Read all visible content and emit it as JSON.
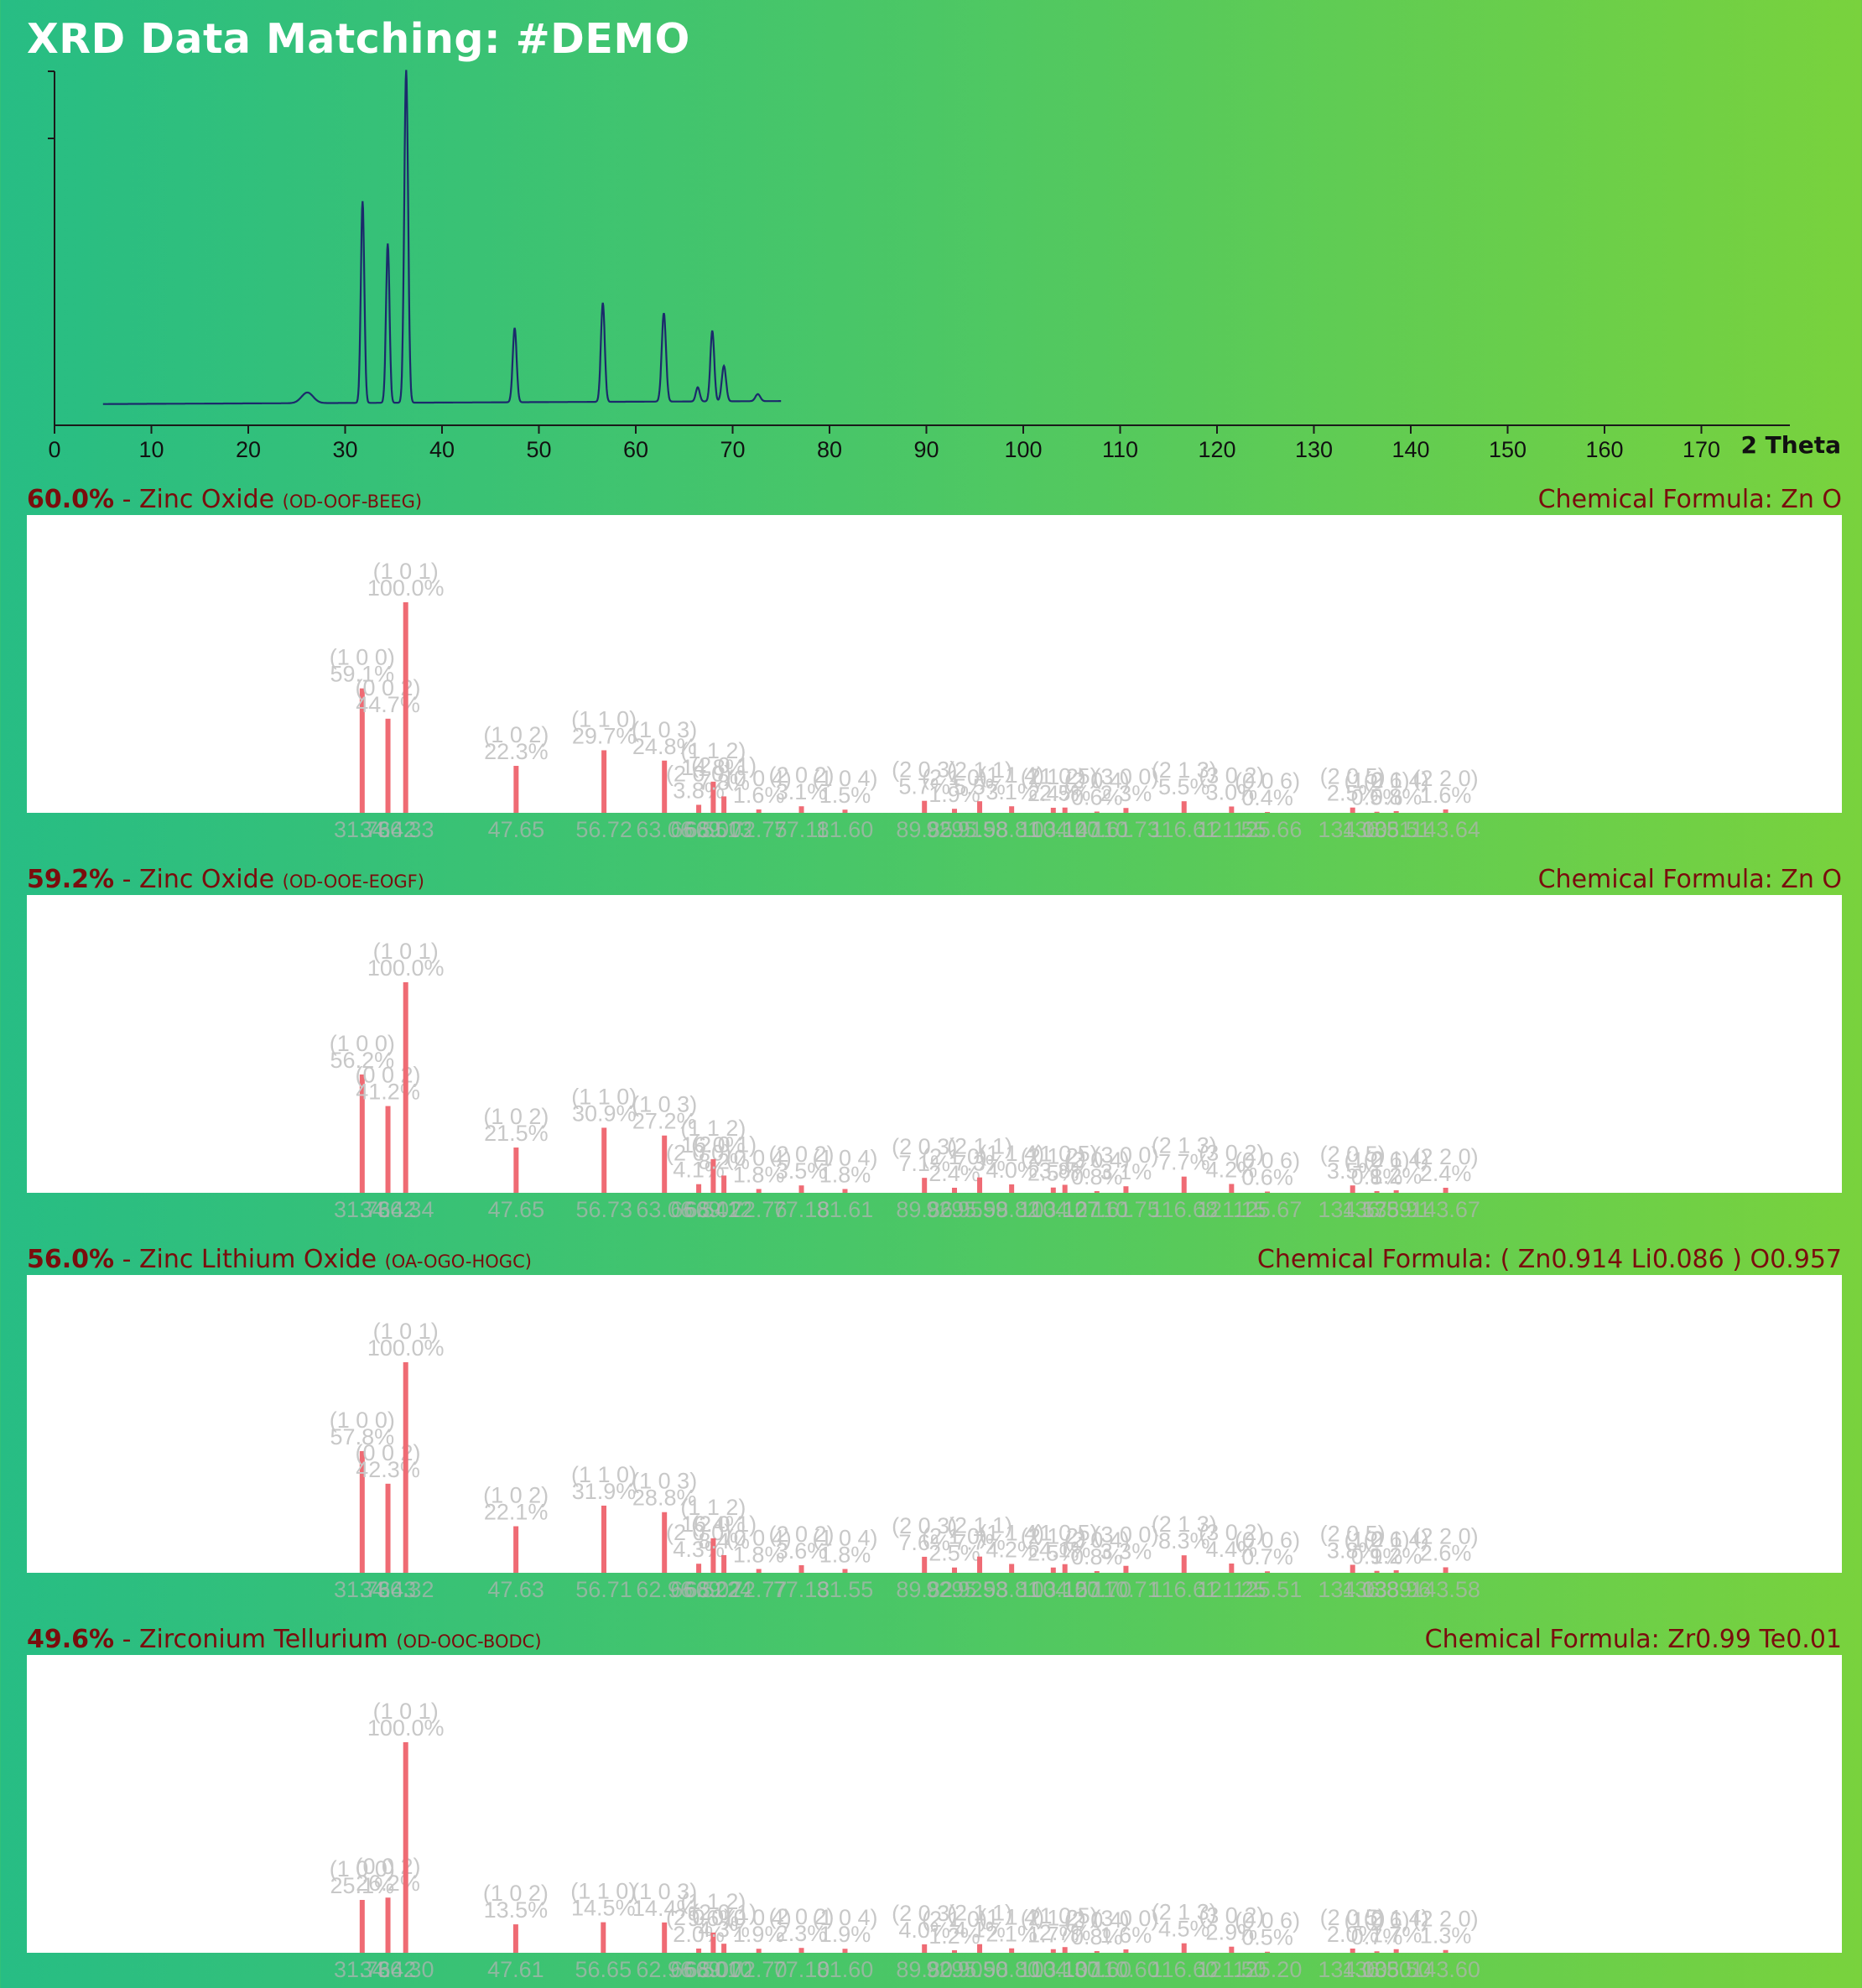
{
  "page": {
    "title": "XRD Data Matching: #DEMO"
  },
  "chart_data": {
    "type": "line",
    "x_axis_label": "2 Theta",
    "xlim": [
      0,
      180
    ],
    "x_ticks": [
      0,
      10,
      20,
      30,
      40,
      50,
      60,
      70,
      80,
      90,
      100,
      110,
      120,
      130,
      140,
      150,
      160,
      170
    ],
    "ylim": [
      0,
      100
    ],
    "line_color": "#1b2a6b",
    "pattern": {
      "x_range": [
        5,
        75
      ],
      "baseline": 6,
      "peaks": [
        {
          "x": 26.1,
          "h": 3,
          "w": 0.6
        },
        {
          "x": 31.8,
          "h": 57,
          "w": 0.18
        },
        {
          "x": 34.4,
          "h": 45,
          "w": 0.18
        },
        {
          "x": 36.3,
          "h": 94,
          "w": 0.2
        },
        {
          "x": 47.5,
          "h": 21,
          "w": 0.2
        },
        {
          "x": 56.6,
          "h": 28,
          "w": 0.2
        },
        {
          "x": 62.9,
          "h": 25,
          "w": 0.22
        },
        {
          "x": 66.4,
          "h": 4,
          "w": 0.2
        },
        {
          "x": 67.9,
          "h": 20,
          "w": 0.2
        },
        {
          "x": 69.1,
          "h": 10,
          "w": 0.22
        },
        {
          "x": 72.6,
          "h": 2,
          "w": 0.25
        },
        {
          "x": 77.0,
          "h": 1,
          "w": 0.3
        }
      ]
    }
  },
  "matches": [
    {
      "percent": "60.0%",
      "name": " - Zinc Oxide ",
      "code": "(OD-OOF-BEEG)",
      "formula": "Chemical Formula: Zn O",
      "peaks": [
        {
          "x": 31.76,
          "xl": "31.76",
          "i": 59.1,
          "hkl": "(1 0 0)",
          "pl": "59.1%"
        },
        {
          "x": 34.42,
          "xl": "34.42",
          "i": 44.7,
          "hkl": "(0 0 2)",
          "pl": "44.7%"
        },
        {
          "x": 36.25,
          "xl": "36.33",
          "i": 100.0,
          "hkl": "(1 0 1)",
          "pl": "100.0%"
        },
        {
          "x": 47.65,
          "xl": "47.65",
          "i": 22.3,
          "hkl": "(1 0 2)",
          "pl": "22.3%"
        },
        {
          "x": 56.72,
          "xl": "56.72",
          "i": 29.7,
          "hkl": "(1 1 0)",
          "pl": "29.7%"
        },
        {
          "x": 62.96,
          "xl": "63.06",
          "i": 24.8,
          "hkl": "(1 0 3)",
          "pl": "24.8%"
        },
        {
          "x": 66.5,
          "xl": "66.55",
          "i": 3.8,
          "hkl": "(2 0 0)",
          "pl": "3.8%"
        },
        {
          "x": 68.0,
          "xl": "68.00",
          "i": 14.8,
          "hkl": "(1 1 2)",
          "pl": "14.8%"
        },
        {
          "x": 69.1,
          "xl": "69.13",
          "i": 7.8,
          "hkl": "(2 0 1)",
          "pl": "7.8%"
        },
        {
          "x": 72.7,
          "xl": "72.75",
          "i": 1.6,
          "hkl": "(0 0 4)",
          "pl": "1.6%"
        },
        {
          "x": 77.1,
          "xl": "77.11",
          "i": 3.1,
          "hkl": "(2 0 2)",
          "pl": "3.1%"
        },
        {
          "x": 81.6,
          "xl": "81.60",
          "i": 1.5,
          "hkl": "(1 0 4)",
          "pl": "1.5%"
        },
        {
          "x": 89.8,
          "xl": "89.85",
          "i": 5.7,
          "hkl": "(2 0 3)",
          "pl": "5.7%"
        },
        {
          "x": 92.9,
          "xl": "92.91",
          "i": 1.9,
          "hkl": "(2 1 0)",
          "pl": "1.9%"
        },
        {
          "x": 95.5,
          "xl": "95.58",
          "i": 5.5,
          "hkl": "(2 1 1)",
          "pl": "5.5%"
        },
        {
          "x": 98.8,
          "xl": "98.81",
          "i": 3.1,
          "hkl": "(1 1 4)",
          "pl": "3.1%"
        },
        {
          "x": 103.1,
          "xl": "103.14",
          "i": 2.4,
          "hkl": "(2 1 2)",
          "pl": "2.4%"
        },
        {
          "x": 104.3,
          "xl": "104.20",
          "i": 2.5,
          "hkl": "(1 0 5)",
          "pl": "2.5%"
        },
        {
          "x": 107.6,
          "xl": "107.61",
          "i": 0.6,
          "hkl": "(2 0 4)",
          "pl": "0.6%"
        },
        {
          "x": 110.6,
          "xl": "110.73",
          "i": 2.3,
          "hkl": "(3 0 0)",
          "pl": "2.3%"
        },
        {
          "x": 116.6,
          "xl": "116.61",
          "i": 5.5,
          "hkl": "(2 1 3)",
          "pl": "5.5%"
        },
        {
          "x": 121.5,
          "xl": "121.55",
          "i": 3.0,
          "hkl": "(3 0 2)",
          "pl": "3.0%"
        },
        {
          "x": 125.2,
          "xl": "125.66",
          "i": 0.4,
          "hkl": "(0 0 6)",
          "pl": "0.4%"
        },
        {
          "x": 134.0,
          "xl": "134.00",
          "i": 2.5,
          "hkl": "(2 0 5)",
          "pl": "2.5%"
        },
        {
          "x": 136.5,
          "xl": "136.51",
          "i": 0.5,
          "hkl": "(1 0 6)",
          "pl": "0.5%"
        },
        {
          "x": 138.5,
          "xl": "138.51",
          "i": 0.8,
          "hkl": "(2 1 4)",
          "pl": "0.8%"
        },
        {
          "x": 143.6,
          "xl": "143.64",
          "i": 1.6,
          "hkl": "(2 2 0)",
          "pl": "1.6%"
        }
      ]
    },
    {
      "percent": "59.2%",
      "name": " - Zinc Oxide ",
      "code": "(OD-OOE-EOGF)",
      "formula": "Chemical Formula: Zn O",
      "peaks": [
        {
          "x": 31.76,
          "xl": "31.76",
          "i": 56.2,
          "hkl": "(1 0 0)",
          "pl": "56.2%"
        },
        {
          "x": 34.42,
          "xl": "34.42",
          "i": 41.2,
          "hkl": "(0 0 2)",
          "pl": "41.2%"
        },
        {
          "x": 36.25,
          "xl": "36.34",
          "i": 100.0,
          "hkl": "(1 0 1)",
          "pl": "100.0%"
        },
        {
          "x": 47.65,
          "xl": "47.65",
          "i": 21.5,
          "hkl": "(1 0 2)",
          "pl": "21.5%"
        },
        {
          "x": 56.73,
          "xl": "56.73",
          "i": 30.9,
          "hkl": "(1 1 0)",
          "pl": "30.9%"
        },
        {
          "x": 62.96,
          "xl": "63.06",
          "i": 27.2,
          "hkl": "(1 0 3)",
          "pl": "27.2%"
        },
        {
          "x": 66.5,
          "xl": "66.54",
          "i": 4.1,
          "hkl": "(2 0 0)",
          "pl": "4.1%"
        },
        {
          "x": 68.0,
          "xl": "68.02",
          "i": 16.0,
          "hkl": "(1 1 2)",
          "pl": "16.0%"
        },
        {
          "x": 69.1,
          "xl": "69.12",
          "i": 8.2,
          "hkl": "(2 0 1)",
          "pl": "8.2%"
        },
        {
          "x": 72.7,
          "xl": "72.76",
          "i": 1.8,
          "hkl": "(0 0 4)",
          "pl": "1.8%"
        },
        {
          "x": 77.1,
          "xl": "77.18",
          "i": 3.5,
          "hkl": "(2 0 2)",
          "pl": "3.5%"
        },
        {
          "x": 81.6,
          "xl": "81.61",
          "i": 1.8,
          "hkl": "(1 0 4)",
          "pl": "1.8%"
        },
        {
          "x": 89.8,
          "xl": "89.86",
          "i": 7.1,
          "hkl": "(2 0 3)",
          "pl": "7.1%"
        },
        {
          "x": 92.9,
          "xl": "92.95",
          "i": 2.4,
          "hkl": "(2 1 0)",
          "pl": "2.4%"
        },
        {
          "x": 95.5,
          "xl": "95.59",
          "i": 7.3,
          "hkl": "(2 1 1)",
          "pl": "7.3%"
        },
        {
          "x": 98.8,
          "xl": "98.82",
          "i": 4.0,
          "hkl": "(1 1 4)",
          "pl": "4.0%"
        },
        {
          "x": 103.1,
          "xl": "103.12",
          "i": 2.5,
          "hkl": "(2 1 2)",
          "pl": "2.5%"
        },
        {
          "x": 104.3,
          "xl": "104.27",
          "i": 3.8,
          "hkl": "(1 0 5)",
          "pl": "3.8%"
        },
        {
          "x": 107.6,
          "xl": "107.61",
          "i": 0.8,
          "hkl": "(2 0 4)",
          "pl": "0.8%"
        },
        {
          "x": 110.6,
          "xl": "110.75",
          "i": 3.1,
          "hkl": "(3 0 0)",
          "pl": "3.1%"
        },
        {
          "x": 116.6,
          "xl": "116.68",
          "i": 7.7,
          "hkl": "(2 1 3)",
          "pl": "7.7%"
        },
        {
          "x": 121.5,
          "xl": "121.15",
          "i": 4.2,
          "hkl": "(3 0 2)",
          "pl": "4.2%"
        },
        {
          "x": 125.2,
          "xl": "125.67",
          "i": 0.6,
          "hkl": "(0 0 6)",
          "pl": "0.6%"
        },
        {
          "x": 134.0,
          "xl": "134.57",
          "i": 3.5,
          "hkl": "(2 0 5)",
          "pl": "3.5%"
        },
        {
          "x": 136.5,
          "xl": "136.59",
          "i": 0.8,
          "hkl": "(1 0 6)",
          "pl": "0.8%"
        },
        {
          "x": 138.5,
          "xl": "138.91",
          "i": 1.2,
          "hkl": "(2 1 4)",
          "pl": "1.2%"
        },
        {
          "x": 143.6,
          "xl": "143.67",
          "i": 2.4,
          "hkl": "(2 2 0)",
          "pl": "2.4%"
        }
      ]
    },
    {
      "percent": "56.0%",
      "name": " - Zinc Lithium Oxide ",
      "code": "(OA-OGO-HOGC)",
      "formula": "Chemical Formula: ( Zn0.914 Li0.086 ) O0.957",
      "peaks": [
        {
          "x": 31.76,
          "xl": "31.76",
          "i": 57.8,
          "hkl": "(1 0 0)",
          "pl": "57.8%"
        },
        {
          "x": 34.42,
          "xl": "34.43",
          "i": 42.3,
          "hkl": "(0 0 2)",
          "pl": "42.3%"
        },
        {
          "x": 36.25,
          "xl": "36.32",
          "i": 100.0,
          "hkl": "(1 0 1)",
          "pl": "100.0%"
        },
        {
          "x": 47.63,
          "xl": "47.63",
          "i": 22.1,
          "hkl": "(1 0 2)",
          "pl": "22.1%"
        },
        {
          "x": 56.71,
          "xl": "56.71",
          "i": 31.9,
          "hkl": "(1 1 0)",
          "pl": "31.9%"
        },
        {
          "x": 62.96,
          "xl": "62.96",
          "i": 28.8,
          "hkl": "(1 0 3)",
          "pl": "28.8%"
        },
        {
          "x": 66.5,
          "xl": "66.52",
          "i": 4.3,
          "hkl": "(2 0 0)",
          "pl": "4.3%"
        },
        {
          "x": 68.0,
          "xl": "68.02",
          "i": 16.4,
          "hkl": "(1 1 2)",
          "pl": "16.4%"
        },
        {
          "x": 69.1,
          "xl": "69.24",
          "i": 8.4,
          "hkl": "(2 0 1)",
          "pl": "8.4%"
        },
        {
          "x": 72.7,
          "xl": "72.77",
          "i": 1.8,
          "hkl": "(0 0 4)",
          "pl": "1.8%"
        },
        {
          "x": 77.1,
          "xl": "77.13",
          "i": 3.6,
          "hkl": "(2 0 2)",
          "pl": "3.6%"
        },
        {
          "x": 81.6,
          "xl": "81.55",
          "i": 1.8,
          "hkl": "(1 0 4)",
          "pl": "1.8%"
        },
        {
          "x": 89.8,
          "xl": "89.82",
          "i": 7.6,
          "hkl": "(2 0 3)",
          "pl": "7.6%"
        },
        {
          "x": 92.9,
          "xl": "92.92",
          "i": 2.5,
          "hkl": "(2 1 0)",
          "pl": "2.5%"
        },
        {
          "x": 95.5,
          "xl": "95.53",
          "i": 7.7,
          "hkl": "(2 1 1)",
          "pl": "7.7%"
        },
        {
          "x": 98.8,
          "xl": "98.81",
          "i": 4.2,
          "hkl": "(1 1 4)",
          "pl": "4.2%"
        },
        {
          "x": 103.1,
          "xl": "103.15",
          "i": 2.5,
          "hkl": "(2 1 2)",
          "pl": "2.5%"
        },
        {
          "x": 104.3,
          "xl": "104.20",
          "i": 4.1,
          "hkl": "(1 0 5)",
          "pl": "4.1%"
        },
        {
          "x": 107.6,
          "xl": "107.70",
          "i": 0.8,
          "hkl": "(2 0 4)",
          "pl": "0.8%"
        },
        {
          "x": 110.6,
          "xl": "110.71",
          "i": 3.3,
          "hkl": "(3 0 0)",
          "pl": "3.3%"
        },
        {
          "x": 116.6,
          "xl": "116.61",
          "i": 8.3,
          "hkl": "(2 1 3)",
          "pl": "8.3%"
        },
        {
          "x": 121.5,
          "xl": "121.25",
          "i": 4.4,
          "hkl": "(3 0 2)",
          "pl": "4.4%"
        },
        {
          "x": 125.2,
          "xl": "125.51",
          "i": 0.7,
          "hkl": "(0 0 6)",
          "pl": "0.7%"
        },
        {
          "x": 134.0,
          "xl": "134.03",
          "i": 3.8,
          "hkl": "(2 0 5)",
          "pl": "3.8%"
        },
        {
          "x": 136.5,
          "xl": "136.89",
          "i": 0.9,
          "hkl": "(1 0 6)",
          "pl": "0.9%"
        },
        {
          "x": 138.5,
          "xl": "138.96",
          "i": 1.2,
          "hkl": "(2 1 4)",
          "pl": "1.2%"
        },
        {
          "x": 143.6,
          "xl": "143.58",
          "i": 2.6,
          "hkl": "(2 2 0)",
          "pl": "2.6%"
        }
      ]
    },
    {
      "percent": "49.6%",
      "name": " - Zirconium Tellurium ",
      "code": "(OD-OOC-BODC)",
      "formula": "Chemical Formula: Zr0.99 Te0.01",
      "peaks": [
        {
          "x": 31.76,
          "xl": "31.76",
          "i": 25.1,
          "hkl": "(1 0 0)",
          "pl": "25.1%"
        },
        {
          "x": 34.42,
          "xl": "34.42",
          "i": 26.2,
          "hkl": "(0 0 2)",
          "pl": "26.2%"
        },
        {
          "x": 36.25,
          "xl": "36.30",
          "i": 100.0,
          "hkl": "(1 0 1)",
          "pl": "100.0%"
        },
        {
          "x": 47.61,
          "xl": "47.61",
          "i": 13.5,
          "hkl": "(1 0 2)",
          "pl": "13.5%"
        },
        {
          "x": 56.65,
          "xl": "56.65",
          "i": 14.5,
          "hkl": "(1 1 0)",
          "pl": "14.5%"
        },
        {
          "x": 62.96,
          "xl": "62.96",
          "i": 14.4,
          "hkl": "(1 0 3)",
          "pl": "14.4%"
        },
        {
          "x": 66.5,
          "xl": "66.50",
          "i": 2.0,
          "hkl": "(2 0 0)",
          "pl": "2.0%"
        },
        {
          "x": 68.0,
          "xl": "68.00",
          "i": 9.6,
          "hkl": "(1 1 2)",
          "pl": "9.6%"
        },
        {
          "x": 69.1,
          "xl": "69.10",
          "i": 4.3,
          "hkl": "(2 0 1)",
          "pl": "4.3%"
        },
        {
          "x": 72.7,
          "xl": "72.70",
          "i": 1.9,
          "hkl": "(0 0 4)",
          "pl": "1.9%"
        },
        {
          "x": 77.1,
          "xl": "77.10",
          "i": 2.3,
          "hkl": "(2 0 2)",
          "pl": "2.3%"
        },
        {
          "x": 81.6,
          "xl": "81.60",
          "i": 1.9,
          "hkl": "(1 0 4)",
          "pl": "1.9%"
        },
        {
          "x": 89.8,
          "xl": "89.80",
          "i": 4.0,
          "hkl": "(2 0 3)",
          "pl": "4.0%"
        },
        {
          "x": 92.9,
          "xl": "92.90",
          "i": 1.2,
          "hkl": "(2 1 0)",
          "pl": "1.2%"
        },
        {
          "x": 95.5,
          "xl": "95.50",
          "i": 4.1,
          "hkl": "(2 1 1)",
          "pl": "4.1%"
        },
        {
          "x": 98.8,
          "xl": "98.80",
          "i": 2.1,
          "hkl": "(1 1 4)",
          "pl": "2.1%"
        },
        {
          "x": 103.1,
          "xl": "103.10",
          "i": 1.7,
          "hkl": "(2 1 2)",
          "pl": "1.7%"
        },
        {
          "x": 104.3,
          "xl": "104.30",
          "i": 2.7,
          "hkl": "(1 0 5)",
          "pl": "2.7%"
        },
        {
          "x": 107.6,
          "xl": "107.60",
          "i": 0.8,
          "hkl": "(2 0 4)",
          "pl": "0.8%"
        },
        {
          "x": 110.6,
          "xl": "110.60",
          "i": 1.6,
          "hkl": "(3 0 0)",
          "pl": "1.6%"
        },
        {
          "x": 116.6,
          "xl": "116.60",
          "i": 4.5,
          "hkl": "(2 1 3)",
          "pl": "4.5%"
        },
        {
          "x": 121.5,
          "xl": "121.50",
          "i": 2.9,
          "hkl": "(3 0 2)",
          "pl": "2.9%"
        },
        {
          "x": 125.2,
          "xl": "125.20",
          "i": 0.5,
          "hkl": "(0 0 6)",
          "pl": "0.5%"
        },
        {
          "x": 134.0,
          "xl": "134.00",
          "i": 2.0,
          "hkl": "(2 0 5)",
          "pl": "2.0%"
        },
        {
          "x": 136.5,
          "xl": "136.50",
          "i": 0.7,
          "hkl": "(1 0 6)",
          "pl": "0.7%"
        },
        {
          "x": 138.5,
          "xl": "138.50",
          "i": 1.7,
          "hkl": "(2 1 4)",
          "pl": "1.7%"
        },
        {
          "x": 143.6,
          "xl": "143.60",
          "i": 1.3,
          "hkl": "(2 2 0)",
          "pl": "1.3%"
        }
      ]
    }
  ],
  "colors": {
    "header_text": "#7a0d0d",
    "stick": "#ef6b74",
    "peak_label": "#c8c8c8",
    "line": "#1b2a6b",
    "axis": "#1a1a1a"
  }
}
